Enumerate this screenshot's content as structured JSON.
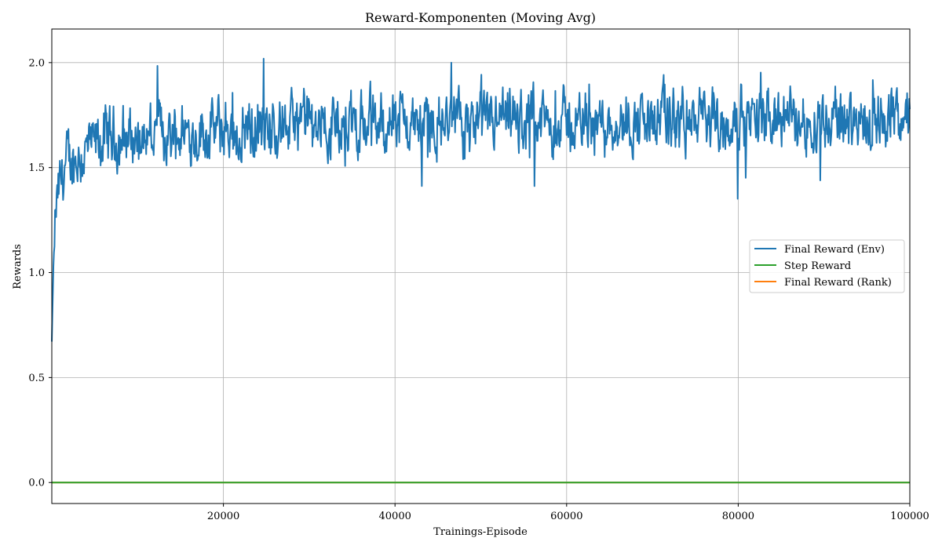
{
  "chart_data": {
    "type": "line",
    "title": "Reward-Komponenten (Moving Avg)",
    "xlabel": "Trainings-Episode",
    "ylabel": "Rewards",
    "xlim": [
      0,
      100000
    ],
    "ylim": [
      -0.1,
      2.16
    ],
    "x_ticks": [
      20000,
      40000,
      60000,
      80000,
      100000
    ],
    "y_ticks": [
      0.0,
      0.5,
      1.0,
      1.5,
      2.0
    ],
    "x_tick_labels": [
      "20000",
      "40000",
      "60000",
      "80000",
      "100000"
    ],
    "y_tick_labels": [
      "0.0",
      "0.5",
      "1.0",
      "1.5",
      "2.0"
    ],
    "grid": true,
    "legend_position": "center-right",
    "series": [
      {
        "name": "Final Reward (Env)",
        "color": "#1f77b4",
        "x": [
          0,
          200,
          500,
          1000,
          1500,
          2000,
          3000,
          4000,
          5000,
          6000,
          8000,
          10000,
          12000,
          15000,
          18000,
          20000,
          25000,
          30000,
          35000,
          40000,
          45000,
          50000,
          55000,
          60000,
          65000,
          70000,
          75000,
          80000,
          85000,
          90000,
          95000,
          100000
        ],
        "values": [
          0.67,
          1.05,
          1.3,
          1.42,
          1.5,
          1.52,
          1.55,
          1.57,
          1.6,
          1.63,
          1.64,
          1.65,
          1.66,
          1.67,
          1.67,
          1.68,
          1.69,
          1.7,
          1.71,
          1.71,
          1.7,
          1.7,
          1.71,
          1.71,
          1.72,
          1.72,
          1.72,
          1.72,
          1.73,
          1.73,
          1.73,
          1.74
        ]
      },
      {
        "name": "Step Reward",
        "color": "#2ca02c",
        "x": [
          0,
          100000
        ],
        "values": [
          0.0,
          0.0
        ]
      },
      {
        "name": "Final Reward (Rank)",
        "color": "#ff7f0e",
        "x": [
          0,
          100000
        ],
        "values": [
          0.0,
          0.0
        ]
      }
    ]
  }
}
